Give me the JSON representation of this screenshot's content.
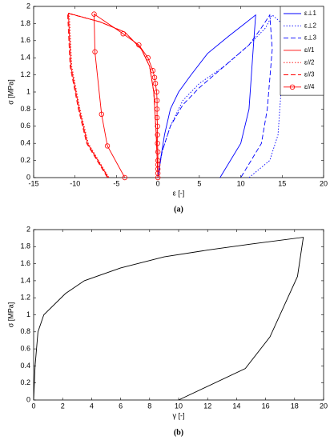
{
  "chart_data": [
    {
      "type": "line",
      "caption": "(a)",
      "xlabel": "ε [-]",
      "ylabel": "σ [MPa]",
      "xlim": [
        -15,
        20
      ],
      "xticks": [
        -15,
        -10,
        -5,
        0,
        5,
        10,
        15,
        20
      ],
      "ylim": [
        0,
        2
      ],
      "yticks": [
        0,
        0.2,
        0.4,
        0.6,
        0.8,
        1,
        1.2,
        1.4,
        1.6,
        1.8,
        2
      ],
      "legend": "upper right",
      "series": [
        {
          "name": "ε⊥1",
          "color": "#0000ff",
          "dash": "solid",
          "x": [
            0,
            0.3,
            0.8,
            1.5,
            2.5,
            4,
            6,
            8.5,
            10.5,
            11.8,
            11.5,
            11,
            10,
            7.5
          ],
          "values": [
            0,
            0.2,
            0.5,
            0.8,
            1.0,
            1.2,
            1.45,
            1.65,
            1.8,
            1.9,
            1.5,
            0.8,
            0.4,
            0
          ]
        },
        {
          "name": "ε⊥2",
          "color": "#0000ff",
          "dash": "dotted",
          "x": [
            0,
            0.5,
            1.5,
            3,
            5,
            8,
            11,
            13,
            13.8,
            15,
            15,
            14.5,
            13.5,
            11
          ],
          "values": [
            0,
            0.3,
            0.6,
            0.9,
            1.1,
            1.3,
            1.55,
            1.75,
            1.9,
            1.8,
            1.2,
            0.5,
            0.2,
            0
          ]
        },
        {
          "name": "ε⊥3",
          "color": "#0000ff",
          "dash": "dashed",
          "x": [
            0,
            0.5,
            1.5,
            3,
            5,
            8,
            11,
            12.5,
            13.5,
            13.8,
            13.2,
            12.5,
            10
          ],
          "values": [
            0,
            0.3,
            0.6,
            0.85,
            1.05,
            1.3,
            1.55,
            1.75,
            1.9,
            1.5,
            0.8,
            0.4,
            0
          ]
        },
        {
          "name": "ε//1",
          "color": "#ff0000",
          "dash": "solid",
          "x": [
            0,
            -0.2,
            -0.5,
            -1,
            -2,
            -4,
            -7,
            -10.8,
            -10.5,
            -9.5,
            -8.5,
            -6
          ],
          "values": [
            0,
            0.5,
            1.0,
            1.3,
            1.5,
            1.7,
            1.82,
            1.92,
            1.3,
            0.8,
            0.4,
            0
          ]
        },
        {
          "name": "ε//2",
          "color": "#ff0000",
          "dash": "dotted",
          "x": [
            0,
            -0.2,
            -0.5,
            -1,
            -2,
            -4,
            -7,
            -10.7,
            -10.4,
            -9.4,
            -8.4,
            -5.9
          ],
          "values": [
            0,
            0.5,
            1.0,
            1.3,
            1.5,
            1.7,
            1.82,
            1.92,
            1.3,
            0.8,
            0.4,
            0
          ]
        },
        {
          "name": "ε//3",
          "color": "#ff0000",
          "dash": "dashed",
          "x": [
            0,
            -0.2,
            -0.5,
            -1,
            -2,
            -4,
            -7,
            -10.9,
            -10.6,
            -9.6,
            -8.6,
            -6.1
          ],
          "values": [
            0,
            0.5,
            1.0,
            1.3,
            1.5,
            1.7,
            1.82,
            1.92,
            1.3,
            0.8,
            0.4,
            0
          ]
        },
        {
          "name": "ε//4",
          "color": "#ff0000",
          "dash": "solid",
          "marker": "circle",
          "x": [
            0,
            0,
            0,
            0,
            0,
            0,
            -0.05,
            -0.05,
            -0.05,
            -0.1,
            -0.1,
            -0.1,
            -0.15,
            -0.3,
            -0.4,
            -0.6,
            -1.2,
            -2.3,
            -4.2,
            -7.7,
            -7.6,
            -6.8,
            -6.1,
            -4
          ],
          "values": [
            0,
            0.05,
            0.1,
            0.15,
            0.2,
            0.3,
            0.4,
            0.5,
            0.6,
            0.7,
            0.8,
            0.9,
            1.0,
            1.1,
            1.17,
            1.25,
            1.4,
            1.55,
            1.68,
            1.91,
            1.47,
            0.74,
            0.37,
            0
          ]
        }
      ]
    },
    {
      "type": "line",
      "caption": "(b)",
      "xlabel": "γ [-]",
      "ylabel": "σ [MPa]",
      "xlim": [
        0,
        20
      ],
      "xticks": [
        0,
        2,
        4,
        6,
        8,
        10,
        12,
        14,
        16,
        18,
        20
      ],
      "ylim": [
        0,
        2
      ],
      "yticks": [
        0,
        0.2,
        0.4,
        0.6,
        0.8,
        1,
        1.2,
        1.4,
        1.6,
        1.8,
        2
      ],
      "series": [
        {
          "color": "#000000",
          "dash": "solid",
          "x": [
            0,
            0.1,
            0.3,
            0.7,
            2.2,
            3.5,
            6,
            9,
            12,
            15,
            18.6,
            18.2,
            16.3,
            14.6,
            10
          ],
          "values": [
            0,
            0.4,
            0.8,
            1.0,
            1.25,
            1.4,
            1.55,
            1.68,
            1.76,
            1.83,
            1.91,
            1.45,
            0.74,
            0.37,
            0
          ]
        }
      ]
    }
  ]
}
